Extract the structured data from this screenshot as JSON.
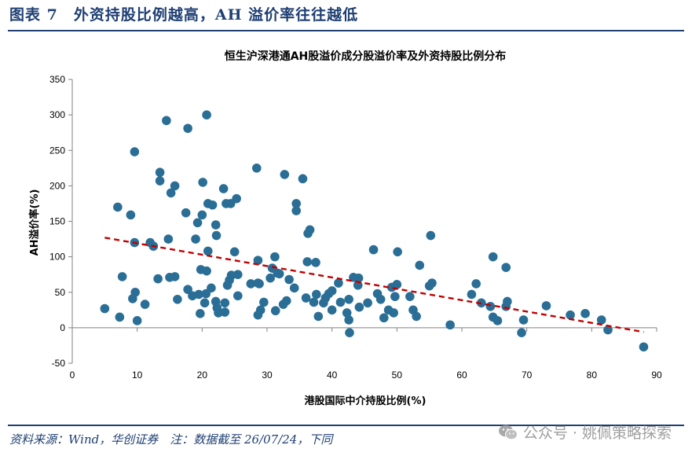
{
  "header": {
    "figure_title": "图表 7　外资持股比例越高，AH 溢价率往往越低"
  },
  "footer": {
    "source": "资料来源：Wind，华创证券　注：数据截至 26/07/24，下同",
    "watermark": "公众号 · 姚佩策略探索",
    "watermark_icon": "wechat-icon"
  },
  "colors": {
    "brand": "#1f3f73",
    "points": "#2a6e96",
    "trend": "#c00000"
  },
  "chart_data": {
    "type": "scatter",
    "title": "恒生沪深港通AH股溢价成分股溢价率及外资持股比例分布",
    "xlabel": "港股国际中介持股比例(%)",
    "ylabel": "AH溢价率(%)",
    "xlim": [
      0,
      90
    ],
    "ylim": [
      -50,
      350
    ],
    "xticks": [
      "0",
      "10",
      "20",
      "30",
      "40",
      "50",
      "60",
      "70",
      "80",
      "90"
    ],
    "yticks": [
      "-50",
      "0",
      "50",
      "100",
      "150",
      "200",
      "250",
      "300",
      "350"
    ],
    "grid": false,
    "trendline": {
      "style": "dashed",
      "x": [
        5,
        88
      ],
      "y": [
        127,
        -6
      ]
    },
    "points": [
      [
        5,
        27
      ],
      [
        7,
        170
      ],
      [
        7.3,
        15
      ],
      [
        7.7,
        72
      ],
      [
        9,
        159
      ],
      [
        9.3,
        41
      ],
      [
        9.6,
        248
      ],
      [
        9.6,
        120
      ],
      [
        9.7,
        50
      ],
      [
        10,
        10
      ],
      [
        11.2,
        33
      ],
      [
        12,
        120
      ],
      [
        12.5,
        115
      ],
      [
        13.2,
        69
      ],
      [
        13.5,
        207
      ],
      [
        13.5,
        219
      ],
      [
        14.5,
        292
      ],
      [
        14.8,
        125
      ],
      [
        15,
        71
      ],
      [
        15.2,
        190
      ],
      [
        15.8,
        72
      ],
      [
        15.8,
        200
      ],
      [
        16.2,
        40
      ],
      [
        17.5,
        162
      ],
      [
        17.8,
        281
      ],
      [
        17.8,
        54
      ],
      [
        18.5,
        45
      ],
      [
        19,
        125
      ],
      [
        19.3,
        148
      ],
      [
        19.5,
        47
      ],
      [
        19.7,
        20
      ],
      [
        19.8,
        82
      ],
      [
        20,
        159
      ],
      [
        20.1,
        205
      ],
      [
        20.4,
        35
      ],
      [
        20.6,
        48
      ],
      [
        20.7,
        300
      ],
      [
        20.7,
        80
      ],
      [
        20.9,
        108
      ],
      [
        20.9,
        175
      ],
      [
        21.4,
        56
      ],
      [
        21.6,
        173
      ],
      [
        22.1,
        145
      ],
      [
        22.1,
        37
      ],
      [
        22.2,
        130
      ],
      [
        22.3,
        28
      ],
      [
        22.5,
        21
      ],
      [
        23.3,
        196
      ],
      [
        23.5,
        35
      ],
      [
        23.5,
        22
      ],
      [
        23.7,
        175
      ],
      [
        23.9,
        60
      ],
      [
        24.2,
        67
      ],
      [
        24.4,
        175
      ],
      [
        24.5,
        74
      ],
      [
        25,
        107
      ],
      [
        25.3,
        182
      ],
      [
        25.5,
        45
      ],
      [
        25.5,
        75
      ],
      [
        27.5,
        62
      ],
      [
        28.4,
        225
      ],
      [
        28.6,
        63
      ],
      [
        28.6,
        95
      ],
      [
        28.6,
        18
      ],
      [
        28.8,
        62
      ],
      [
        29,
        25
      ],
      [
        29.5,
        36
      ],
      [
        30.5,
        70
      ],
      [
        30.8,
        84
      ],
      [
        31.2,
        100
      ],
      [
        31.3,
        24
      ],
      [
        31.6,
        77
      ],
      [
        31.9,
        76
      ],
      [
        32.5,
        33
      ],
      [
        32.7,
        216
      ],
      [
        33,
        38
      ],
      [
        33.4,
        68
      ],
      [
        34.2,
        56
      ],
      [
        34.5,
        165
      ],
      [
        34.5,
        175
      ],
      [
        35.5,
        210
      ],
      [
        36,
        42
      ],
      [
        36.2,
        93
      ],
      [
        36.3,
        133
      ],
      [
        36.6,
        138
      ],
      [
        37.2,
        36
      ],
      [
        37.5,
        92
      ],
      [
        37.6,
        47
      ],
      [
        37.9,
        16
      ],
      [
        38.7,
        35
      ],
      [
        39,
        42
      ],
      [
        39.5,
        48
      ],
      [
        40,
        52
      ],
      [
        40,
        25
      ],
      [
        41,
        63
      ],
      [
        41.3,
        36
      ],
      [
        42.3,
        21
      ],
      [
        42.6,
        40
      ],
      [
        42.6,
        11
      ],
      [
        42.7,
        -7
      ],
      [
        43.3,
        71
      ],
      [
        44,
        60
      ],
      [
        44.1,
        70
      ],
      [
        44.2,
        29
      ],
      [
        45.5,
        35
      ],
      [
        46.4,
        110
      ],
      [
        47,
        48
      ],
      [
        47.5,
        40
      ],
      [
        48,
        14
      ],
      [
        48.7,
        25
      ],
      [
        49.2,
        57
      ],
      [
        49.5,
        21
      ],
      [
        49.7,
        44
      ],
      [
        50,
        61
      ],
      [
        50.1,
        107
      ],
      [
        52,
        44
      ],
      [
        52.5,
        25
      ],
      [
        53,
        16
      ],
      [
        53.5,
        88
      ],
      [
        55,
        59
      ],
      [
        55.2,
        130
      ],
      [
        55.4,
        63
      ],
      [
        58.2,
        4
      ],
      [
        61.5,
        47
      ],
      [
        62.2,
        62
      ],
      [
        63,
        35
      ],
      [
        64.4,
        30
      ],
      [
        64.8,
        100
      ],
      [
        64.8,
        15
      ],
      [
        65.5,
        10
      ],
      [
        66.8,
        85
      ],
      [
        66.8,
        30
      ],
      [
        67,
        37
      ],
      [
        69.2,
        -7
      ],
      [
        69.5,
        11
      ],
      [
        73,
        31
      ],
      [
        76.7,
        18
      ],
      [
        79,
        20
      ],
      [
        81.5,
        11
      ],
      [
        82.5,
        -3
      ],
      [
        88,
        -27
      ]
    ]
  }
}
